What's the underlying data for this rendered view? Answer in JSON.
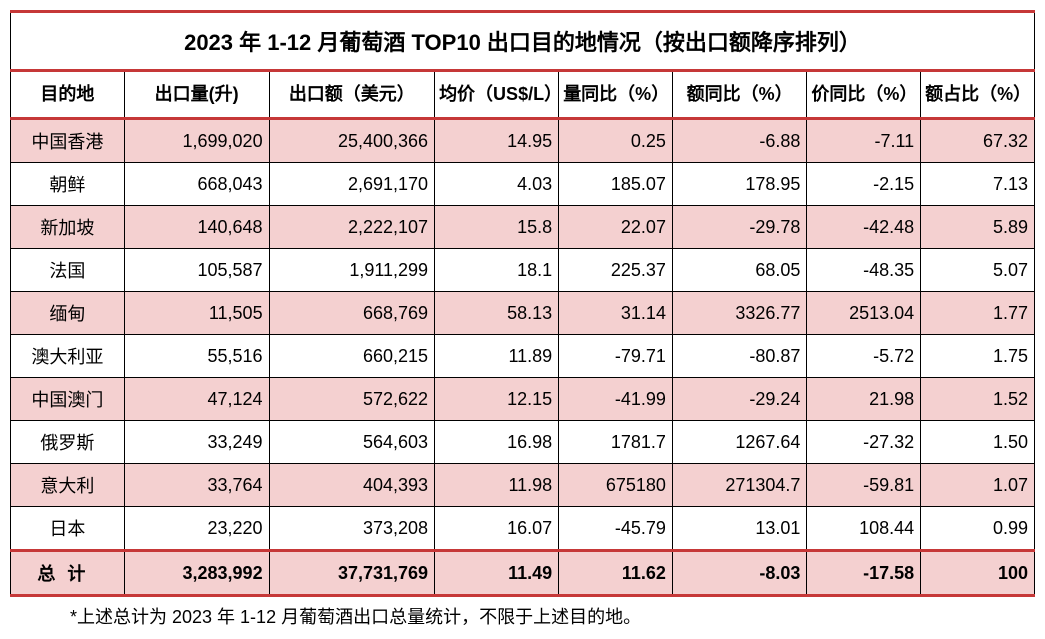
{
  "title": "2023 年 1-12 月葡萄酒 TOP10 出口目的地情况（按出口额降序排列）",
  "headers": {
    "destination": "目的地",
    "volume": "出口量(升)",
    "value": "出口额（美元）",
    "price": "均价（US$/L）",
    "qty_yoy": "量同比（%）",
    "val_yoy": "额同比（%）",
    "price_yoy": "价同比（%）",
    "share": "额占比（%）"
  },
  "rows": [
    {
      "dest": "中国香港",
      "vol": "1,699,020",
      "val": "25,400,366",
      "price": "14.95",
      "qty": "0.25",
      "valY": "-6.88",
      "priceY": "-7.11",
      "share": "67.32"
    },
    {
      "dest": "朝鲜",
      "vol": "668,043",
      "val": "2,691,170",
      "price": "4.03",
      "qty": "185.07",
      "valY": "178.95",
      "priceY": "-2.15",
      "share": "7.13"
    },
    {
      "dest": "新加坡",
      "vol": "140,648",
      "val": "2,222,107",
      "price": "15.8",
      "qty": "22.07",
      "valY": "-29.78",
      "priceY": "-42.48",
      "share": "5.89"
    },
    {
      "dest": "法国",
      "vol": "105,587",
      "val": "1,911,299",
      "price": "18.1",
      "qty": "225.37",
      "valY": "68.05",
      "priceY": "-48.35",
      "share": "5.07"
    },
    {
      "dest": "缅甸",
      "vol": "11,505",
      "val": "668,769",
      "price": "58.13",
      "qty": "31.14",
      "valY": "3326.77",
      "priceY": "2513.04",
      "share": "1.77"
    },
    {
      "dest": "澳大利亚",
      "vol": "55,516",
      "val": "660,215",
      "price": "11.89",
      "qty": "-79.71",
      "valY": "-80.87",
      "priceY": "-5.72",
      "share": "1.75"
    },
    {
      "dest": "中国澳门",
      "vol": "47,124",
      "val": "572,622",
      "price": "12.15",
      "qty": "-41.99",
      "valY": "-29.24",
      "priceY": "21.98",
      "share": "1.52"
    },
    {
      "dest": "俄罗斯",
      "vol": "33,249",
      "val": "564,603",
      "price": "16.98",
      "qty": "1781.7",
      "valY": "1267.64",
      "priceY": "-27.32",
      "share": "1.50"
    },
    {
      "dest": "意大利",
      "vol": "33,764",
      "val": "404,393",
      "price": "11.98",
      "qty": "675180",
      "valY": "271304.7",
      "priceY": "-59.81",
      "share": "1.07"
    },
    {
      "dest": "日本",
      "vol": "23,220",
      "val": "373,208",
      "price": "16.07",
      "qty": "-45.79",
      "valY": "13.01",
      "priceY": "108.44",
      "share": "0.99"
    }
  ],
  "total": {
    "label": "总计",
    "vol": "3,283,992",
    "val": "37,731,769",
    "price": "11.49",
    "qty": "11.62",
    "valY": "-8.03",
    "priceY": "-17.58",
    "share": "100"
  },
  "footnote": "*上述总计为 2023 年 1-12 月葡萄酒出口总量统计，不限于上述目的地。",
  "style": {
    "border_accent": "#c63838",
    "row_odd_bg": "#f4d0d0",
    "row_even_bg": "#ffffff",
    "text_color": "#000000",
    "title_fontsize": 22,
    "header_fontsize": 18,
    "cell_fontsize": 18
  }
}
